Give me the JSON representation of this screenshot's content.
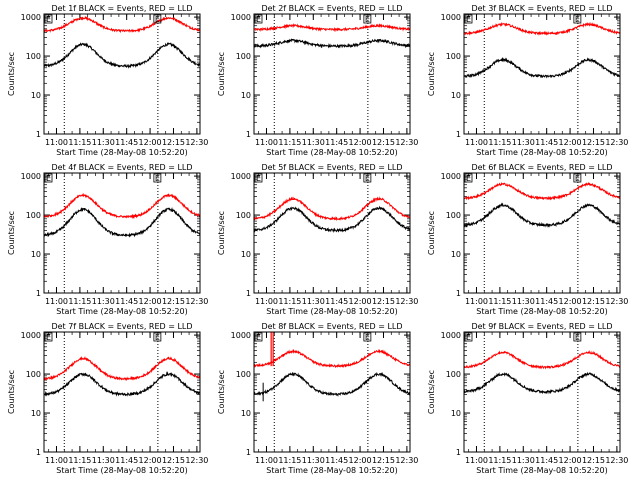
{
  "colors": {
    "events": "#000000",
    "lld": "#ff0000",
    "axes": "#000000",
    "marker": "#000000",
    "background": "#ffffff"
  },
  "chart_data": [
    {
      "type": "line",
      "title": "Det 1f BLACK = Events, RED = LLD",
      "xlabel": "Start Time (28-May-08 10:52:20)",
      "ylabel": "Counts/sec",
      "yscale": "log",
      "ylim": [
        1,
        1200
      ],
      "xlim": [
        "10:52",
        "12:32"
      ],
      "xticks": [
        "11:00",
        "11:15",
        "11:30",
        "11:45",
        "12:00",
        "12:15",
        "12:30"
      ],
      "yticks": [
        "1",
        "10",
        "100",
        "1000"
      ],
      "vlines": [
        "11:05",
        "12:05"
      ],
      "marker_label": "E",
      "grid": false,
      "series": [
        {
          "name": "Events",
          "color": "#000000",
          "base": 55,
          "peak": 200
        },
        {
          "name": "LLD",
          "color": "#ff0000",
          "base": 440,
          "peak": 950
        }
      ]
    },
    {
      "type": "line",
      "title": "Det 2f BLACK = Events, RED = LLD",
      "xlabel": "Start Time (28-May-08 10:52:20)",
      "ylabel": "Counts/sec",
      "yscale": "log",
      "ylim": [
        1,
        1200
      ],
      "xlim": [
        "10:52",
        "12:32"
      ],
      "xticks": [
        "11:00",
        "11:15",
        "11:30",
        "11:45",
        "12:00",
        "12:15",
        "12:30"
      ],
      "yticks": [
        "1",
        "10",
        "100",
        "1000"
      ],
      "vlines": [
        "11:05",
        "12:05"
      ],
      "marker_label": "E",
      "grid": false,
      "series": [
        {
          "name": "Events",
          "color": "#000000",
          "base": 180,
          "peak": 250
        },
        {
          "name": "LLD",
          "color": "#ff0000",
          "base": 480,
          "peak": 600
        }
      ]
    },
    {
      "type": "line",
      "title": "Det 3f BLACK = Events, RED = LLD",
      "xlabel": "Start Time (28-May-08 10:52:20)",
      "ylabel": "Counts/sec",
      "yscale": "log",
      "ylim": [
        1,
        1200
      ],
      "xlim": [
        "10:52",
        "12:32"
      ],
      "xticks": [
        "11:00",
        "11:15",
        "11:30",
        "11:45",
        "12:00",
        "12:15",
        "12:30"
      ],
      "yticks": [
        "1",
        "10",
        "100",
        "1000"
      ],
      "vlines": [
        "11:05",
        "12:05"
      ],
      "marker_label": "E",
      "grid": false,
      "series": [
        {
          "name": "Events",
          "color": "#000000",
          "base": 30,
          "peak": 80
        },
        {
          "name": "LLD",
          "color": "#ff0000",
          "base": 380,
          "peak": 650
        }
      ]
    },
    {
      "type": "line",
      "title": "Det 4f BLACK = Events, RED = LLD",
      "xlabel": "Start Time (28-May-08 10:52:20)",
      "ylabel": "Counts/sec",
      "yscale": "log",
      "ylim": [
        1,
        1200
      ],
      "xlim": [
        "10:52",
        "12:32"
      ],
      "xticks": [
        "11:00",
        "11:15",
        "11:30",
        "11:45",
        "12:00",
        "12:15",
        "12:30"
      ],
      "yticks": [
        "1",
        "10",
        "100",
        "1000"
      ],
      "vlines": [
        "11:05",
        "12:05"
      ],
      "marker_label": "E",
      "grid": false,
      "series": [
        {
          "name": "Events",
          "color": "#000000",
          "base": 30,
          "peak": 140
        },
        {
          "name": "LLD",
          "color": "#ff0000",
          "base": 90,
          "peak": 320
        }
      ]
    },
    {
      "type": "line",
      "title": "Det 5f BLACK = Events, RED = LLD",
      "xlabel": "Start Time (28-May-08 10:52:20)",
      "ylabel": "Counts/sec",
      "yscale": "log",
      "ylim": [
        1,
        1200
      ],
      "xlim": [
        "10:52",
        "12:32"
      ],
      "xticks": [
        "11:00",
        "11:15",
        "11:30",
        "11:45",
        "12:00",
        "12:15",
        "12:30"
      ],
      "yticks": [
        "1",
        "10",
        "100",
        "1000"
      ],
      "vlines": [
        "11:05",
        "12:05"
      ],
      "marker_label": "E",
      "grid": false,
      "series": [
        {
          "name": "Events",
          "color": "#000000",
          "base": 40,
          "peak": 150
        },
        {
          "name": "LLD",
          "color": "#ff0000",
          "base": 80,
          "peak": 260
        }
      ]
    },
    {
      "type": "line",
      "title": "Det 6f BLACK = Events, RED = LLD",
      "xlabel": "Start Time (28-May-08 10:52:20)",
      "ylabel": "Counts/sec",
      "yscale": "log",
      "ylim": [
        1,
        1200
      ],
      "xlim": [
        "10:52",
        "12:32"
      ],
      "xticks": [
        "11:00",
        "11:15",
        "11:30",
        "11:45",
        "12:00",
        "12:15",
        "12:30"
      ],
      "yticks": [
        "1",
        "10",
        "100",
        "1000"
      ],
      "vlines": [
        "11:05",
        "12:05"
      ],
      "marker_label": "E",
      "grid": false,
      "series": [
        {
          "name": "Events",
          "color": "#000000",
          "base": 55,
          "peak": 180
        },
        {
          "name": "LLD",
          "color": "#ff0000",
          "base": 270,
          "peak": 620
        }
      ]
    },
    {
      "type": "line",
      "title": "Det 7f BLACK = Events, RED = LLD",
      "xlabel": "Start Time (28-May-08 10:52:20)",
      "ylabel": "Counts/sec",
      "yscale": "log",
      "ylim": [
        1,
        1200
      ],
      "xlim": [
        "10:52",
        "12:32"
      ],
      "xticks": [
        "11:00",
        "11:15",
        "11:30",
        "11:45",
        "12:00",
        "12:15",
        "12:30"
      ],
      "yticks": [
        "1",
        "10",
        "100",
        "1000"
      ],
      "vlines": [
        "11:05",
        "12:05"
      ],
      "marker_label": "E",
      "grid": false,
      "series": [
        {
          "name": "Events",
          "color": "#000000",
          "base": 30,
          "peak": 100
        },
        {
          "name": "LLD",
          "color": "#ff0000",
          "base": 75,
          "peak": 250
        }
      ]
    },
    {
      "type": "line",
      "title": "Det 8f BLACK = Events, RED = LLD",
      "xlabel": "Start Time (28-May-08 10:52:20)",
      "ylabel": "Counts/sec",
      "yscale": "log",
      "ylim": [
        1,
        1200
      ],
      "xlim": [
        "10:52",
        "12:32"
      ],
      "xticks": [
        "11:00",
        "11:15",
        "11:30",
        "11:45",
        "12:00",
        "12:15",
        "12:30"
      ],
      "yticks": [
        "1",
        "10",
        "100",
        "1000"
      ],
      "vlines": [
        "11:05",
        "12:05"
      ],
      "marker_label": "E",
      "grid": false,
      "spike": {
        "time": "11:03",
        "value": 1200
      },
      "series": [
        {
          "name": "Events",
          "color": "#000000",
          "base": 30,
          "peak": 100
        },
        {
          "name": "LLD",
          "color": "#ff0000",
          "base": 160,
          "peak": 380
        }
      ]
    },
    {
      "type": "line",
      "title": "Det 9f BLACK = Events, RED = LLD",
      "xlabel": "Start Time (28-May-08 10:52:20)",
      "ylabel": "Counts/sec",
      "yscale": "log",
      "ylim": [
        1,
        1200
      ],
      "xlim": [
        "10:52",
        "12:32"
      ],
      "xticks": [
        "11:00",
        "11:15",
        "11:30",
        "11:45",
        "12:00",
        "12:15",
        "12:30"
      ],
      "yticks": [
        "1",
        "10",
        "100",
        "1000"
      ],
      "vlines": [
        "11:05",
        "12:05"
      ],
      "marker_label": "E",
      "grid": false,
      "series": [
        {
          "name": "Events",
          "color": "#000000",
          "base": 35,
          "peak": 100
        },
        {
          "name": "LLD",
          "color": "#ff0000",
          "base": 150,
          "peak": 360
        }
      ]
    }
  ]
}
